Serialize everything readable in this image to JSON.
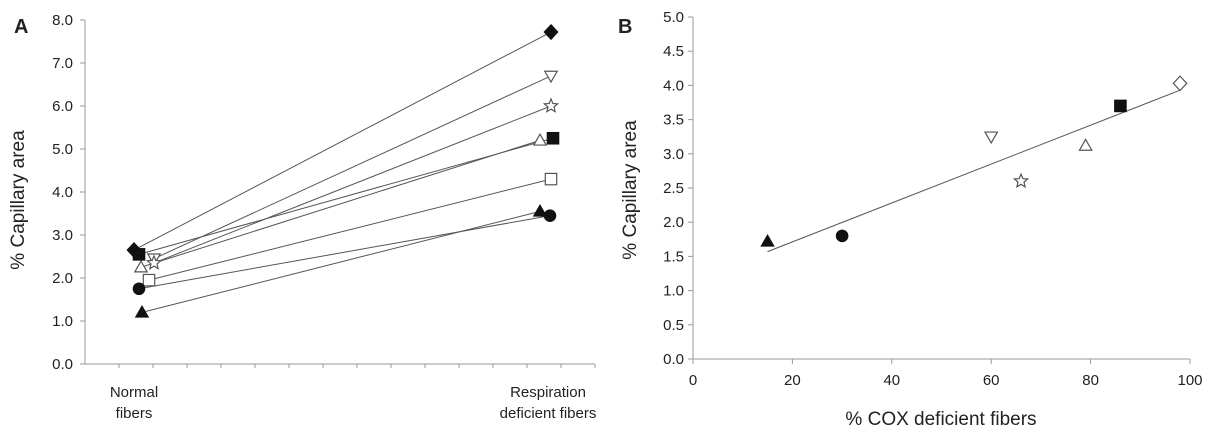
{
  "chart_data": [
    {
      "panel": "A",
      "type": "line",
      "ylabel": "% Capillary area",
      "xlabel": "",
      "ylim": [
        0,
        8
      ],
      "yticks": [
        "0.0",
        "1.0",
        "2.0",
        "3.0",
        "4.0",
        "5.0",
        "6.0",
        "7.0",
        "8.0"
      ],
      "categories": [
        {
          "line1": "Normal",
          "line2": "fibers"
        },
        {
          "line1": "Respiration",
          "line2": "deficient fibers"
        }
      ],
      "grid": false,
      "series": [
        {
          "marker": "diamond-filled",
          "values": [
            2.65,
            7.72
          ]
        },
        {
          "marker": "triangle-down-open",
          "values": [
            2.45,
            6.7
          ]
        },
        {
          "marker": "star-open",
          "values": [
            2.35,
            6.0
          ]
        },
        {
          "marker": "triangle-up-open",
          "values": [
            2.25,
            5.2
          ]
        },
        {
          "marker": "square-filled",
          "values": [
            2.55,
            5.25
          ]
        },
        {
          "marker": "square-open",
          "values": [
            1.95,
            4.3
          ]
        },
        {
          "marker": "triangle-up-filled",
          "values": [
            1.2,
            3.55
          ]
        },
        {
          "marker": "circle-filled",
          "values": [
            1.75,
            3.45
          ]
        }
      ]
    },
    {
      "panel": "B",
      "type": "scatter",
      "xlabel": "% COX deficient fibers",
      "ylabel": "% Capillary area",
      "xlim": [
        0,
        100
      ],
      "ylim": [
        0,
        5
      ],
      "xticks": [
        "0",
        "20",
        "40",
        "60",
        "80",
        "100"
      ],
      "yticks": [
        "0.0",
        "0.5",
        "1.0",
        "1.5",
        "2.0",
        "2.5",
        "3.0",
        "3.5",
        "4.0",
        "4.5",
        "5.0"
      ],
      "grid": false,
      "points": [
        {
          "marker": "triangle-up-filled",
          "x": 15,
          "y": 1.72
        },
        {
          "marker": "circle-filled",
          "x": 30,
          "y": 1.8
        },
        {
          "marker": "triangle-down-open",
          "x": 60,
          "y": 3.25
        },
        {
          "marker": "star-open",
          "x": 66,
          "y": 2.6
        },
        {
          "marker": "triangle-up-open",
          "x": 79,
          "y": 3.12
        },
        {
          "marker": "square-filled",
          "x": 86,
          "y": 3.7
        },
        {
          "marker": "diamond-open",
          "x": 98,
          "y": 4.03
        }
      ],
      "trendline": {
        "x": [
          15,
          98
        ],
        "y": [
          1.57,
          3.93
        ]
      }
    }
  ],
  "panel_labels": {
    "a": "A",
    "b": "B"
  }
}
